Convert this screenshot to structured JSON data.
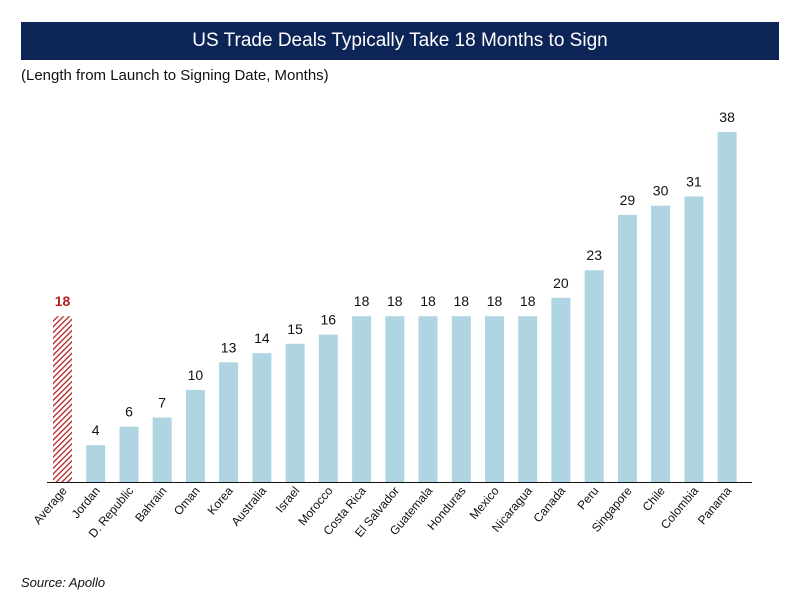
{
  "title": "US Trade Deals Typically Take 18 Months to Sign",
  "subtitle": "(Length from Launch to Signing Date, Months)",
  "source": "Source: Apollo",
  "colors": {
    "title_bg": "#0d2457",
    "bar": "#b0d5e2",
    "average": "#b22222",
    "axis": "#111111"
  },
  "chart_data": {
    "type": "bar",
    "title": "US Trade Deals Typically Take 18 Months to Sign",
    "ylabel": "(Length from Launch to Signing Date, Months)",
    "xlabel": "",
    "ylim": [
      0,
      38
    ],
    "grid": false,
    "legend": "none",
    "categories": [
      "Average",
      "Jordan",
      "D. Republic",
      "Bahrain",
      "Oman",
      "Korea",
      "Australia",
      "Israel",
      "Morocco",
      "Costa Rica",
      "El Salvador",
      "Guatemala",
      "Honduras",
      "Mexico",
      "Nicaragua",
      "Canada",
      "Peru",
      "Singapore",
      "Chile",
      "Colombia",
      "Panama"
    ],
    "values": [
      18,
      4,
      6,
      7,
      10,
      13,
      14,
      15,
      16,
      18,
      18,
      18,
      18,
      18,
      18,
      20,
      23,
      29,
      30,
      31,
      38
    ],
    "highlight": [
      "Average"
    ]
  }
}
